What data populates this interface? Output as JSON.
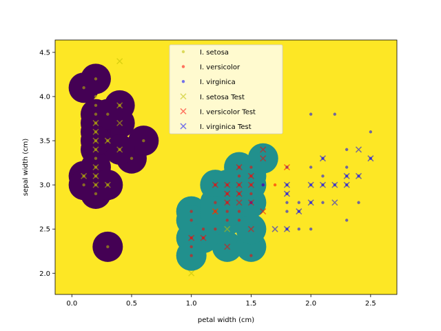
{
  "chart_data": {
    "type": "scatter",
    "title": "",
    "xlabel": "petal width (cm)",
    "ylabel": "sepal width (cm)",
    "xlim": [
      -0.14,
      2.72
    ],
    "ylim": [
      1.76,
      4.64
    ],
    "xticks": [
      0.0,
      0.5,
      1.0,
      1.5,
      2.0,
      2.5
    ],
    "xtick_labels": [
      "0.0",
      "0.5",
      "1.0",
      "1.5",
      "2.0",
      "2.5"
    ],
    "yticks": [
      2.0,
      2.5,
      3.0,
      3.5,
      4.0,
      4.5
    ],
    "ytick_labels": [
      "2.0",
      "2.5",
      "3.0",
      "3.5",
      "4.0",
      "4.5"
    ],
    "grid": false,
    "legend_position": "top-center",
    "background": {
      "type": "decision-regions",
      "colors": {
        "setosa": "#440154",
        "versicolor": "#21908d",
        "virginica": "#fde725"
      },
      "setosa_region": [
        [
          [
            0.2,
            3.8
          ],
          [
            0.2,
            4.2
          ],
          [
            0.1,
            4.1
          ],
          [
            0.2,
            3.7
          ],
          [
            0.4,
            3.9
          ],
          [
            0.4,
            3.7
          ],
          [
            0.3,
            3.5
          ],
          [
            0.2,
            3.4
          ],
          [
            0.1,
            3.1
          ],
          [
            0.2,
            3.2
          ],
          [
            0.2,
            3.0
          ],
          [
            0.2,
            2.9
          ],
          [
            0.5,
            3.3
          ],
          [
            0.6,
            3.5
          ],
          [
            0.2,
            3.6
          ],
          [
            0.3,
            3.8
          ],
          [
            0.1,
            3.0
          ],
          [
            0.3,
            3.0
          ],
          [
            0.4,
            3.4
          ],
          [
            0.2,
            3.5
          ]
        ],
        [
          [
            0.3,
            2.3
          ]
        ]
      ],
      "versicolor_region": [
        [
          [
            1.0,
            2.4
          ],
          [
            1.0,
            2.7
          ],
          [
            1.1,
            2.5
          ],
          [
            1.0,
            2.2
          ],
          [
            1.3,
            2.3
          ],
          [
            1.0,
            2.6
          ],
          [
            1.1,
            2.4
          ],
          [
            1.3,
            2.6
          ],
          [
            1.2,
            2.5
          ],
          [
            1.5,
            2.3
          ],
          [
            1.2,
            2.8
          ],
          [
            1.3,
            2.9
          ],
          [
            1.4,
            2.9
          ],
          [
            1.5,
            2.8
          ],
          [
            1.2,
            3.0
          ],
          [
            1.5,
            3.0
          ],
          [
            1.3,
            2.8
          ],
          [
            1.4,
            3.1
          ],
          [
            1.5,
            3.1
          ],
          [
            1.4,
            3.2
          ],
          [
            1.6,
            3.3
          ],
          [
            1.3,
            3.0
          ],
          [
            1.4,
            2.7
          ],
          [
            1.2,
            2.6
          ],
          [
            1.5,
            2.5
          ],
          [
            1.4,
            2.8
          ],
          [
            1.3,
            2.7
          ],
          [
            1.2,
            2.7
          ],
          [
            1.1,
            2.4
          ]
        ]
      ]
    },
    "series": [
      {
        "name": "I. setosa",
        "marker": "dot",
        "color": "#bfbf00",
        "points": [
          [
            0.2,
            4.2
          ],
          [
            0.1,
            4.1
          ],
          [
            0.2,
            3.8
          ],
          [
            0.3,
            3.8
          ],
          [
            0.2,
            3.7
          ],
          [
            0.4,
            3.9
          ],
          [
            0.2,
            3.6
          ],
          [
            0.6,
            3.5
          ],
          [
            0.5,
            3.3
          ],
          [
            0.3,
            3.5
          ],
          [
            0.2,
            3.5
          ],
          [
            0.2,
            3.4
          ],
          [
            0.4,
            3.4
          ],
          [
            0.2,
            3.3
          ],
          [
            0.2,
            3.2
          ],
          [
            0.2,
            3.1
          ],
          [
            0.1,
            3.1
          ],
          [
            0.2,
            3.0
          ],
          [
            0.1,
            3.0
          ],
          [
            0.3,
            3.0
          ],
          [
            0.2,
            2.9
          ],
          [
            0.3,
            2.3
          ],
          [
            0.2,
            3.9
          ],
          [
            0.2,
            4.0
          ]
        ]
      },
      {
        "name": "I. versicolor",
        "marker": "dot",
        "color": "#ff0000",
        "points": [
          [
            1.0,
            2.7
          ],
          [
            1.0,
            2.6
          ],
          [
            1.1,
            2.5
          ],
          [
            1.0,
            2.4
          ],
          [
            1.0,
            2.3
          ],
          [
            1.0,
            2.2
          ],
          [
            1.2,
            2.8
          ],
          [
            1.2,
            3.0
          ],
          [
            1.3,
            3.0
          ],
          [
            1.4,
            3.0
          ],
          [
            1.5,
            3.0
          ],
          [
            1.3,
            2.9
          ],
          [
            1.4,
            2.9
          ],
          [
            1.5,
            2.9
          ],
          [
            1.3,
            2.8
          ],
          [
            1.5,
            2.8
          ],
          [
            1.3,
            2.7
          ],
          [
            1.4,
            2.7
          ],
          [
            1.2,
            2.7
          ],
          [
            1.3,
            2.6
          ],
          [
            1.4,
            2.6
          ],
          [
            1.2,
            2.5
          ],
          [
            1.4,
            3.2
          ],
          [
            1.5,
            3.2
          ],
          [
            1.5,
            3.1
          ],
          [
            1.4,
            3.1
          ],
          [
            1.6,
            3.0
          ],
          [
            1.7,
            3.0
          ],
          [
            1.5,
            2.2
          ],
          [
            1.1,
            2.4
          ]
        ]
      },
      {
        "name": "I. virginica",
        "marker": "dot",
        "color": "#0000ff",
        "points": [
          [
            2.0,
            3.8
          ],
          [
            2.2,
            3.8
          ],
          [
            2.5,
            3.6
          ],
          [
            2.3,
            3.4
          ],
          [
            2.5,
            3.3
          ],
          [
            2.1,
            3.3
          ],
          [
            2.3,
            3.2
          ],
          [
            2.0,
            3.2
          ],
          [
            1.8,
            3.2
          ],
          [
            2.3,
            3.1
          ],
          [
            2.4,
            3.1
          ],
          [
            2.1,
            3.1
          ],
          [
            2.0,
            3.0
          ],
          [
            2.1,
            3.0
          ],
          [
            2.2,
            3.0
          ],
          [
            2.3,
            3.0
          ],
          [
            1.8,
            3.0
          ],
          [
            1.6,
            3.0
          ],
          [
            2.0,
            2.8
          ],
          [
            1.8,
            2.8
          ],
          [
            2.4,
            2.8
          ],
          [
            1.8,
            2.9
          ],
          [
            1.9,
            2.8
          ],
          [
            1.9,
            2.7
          ],
          [
            1.8,
            2.7
          ],
          [
            2.3,
            2.6
          ],
          [
            1.9,
            2.5
          ],
          [
            1.8,
            2.5
          ],
          [
            2.0,
            2.5
          ],
          [
            1.5,
            2.8
          ],
          [
            2.1,
            2.8
          ]
        ]
      },
      {
        "name": "I. setosa Test",
        "marker": "x",
        "color": "#bfbf00",
        "points": [
          [
            0.4,
            4.4
          ],
          [
            0.4,
            3.9
          ],
          [
            0.4,
            3.7
          ],
          [
            0.2,
            3.7
          ],
          [
            0.2,
            3.6
          ],
          [
            0.2,
            3.5
          ],
          [
            0.3,
            3.5
          ],
          [
            0.2,
            3.4
          ],
          [
            0.4,
            3.4
          ],
          [
            0.2,
            3.2
          ],
          [
            0.2,
            3.1
          ],
          [
            0.1,
            3.1
          ],
          [
            0.2,
            3.0
          ],
          [
            0.3,
            3.0
          ],
          [
            1.0,
            2.0
          ],
          [
            1.3,
            2.5
          ],
          [
            1.2,
            2.7
          ]
        ]
      },
      {
        "name": "I. versicolor Test",
        "marker": "x",
        "color": "#ff0000",
        "points": [
          [
            1.6,
            3.4
          ],
          [
            1.6,
            3.3
          ],
          [
            1.4,
            3.2
          ],
          [
            1.8,
            3.2
          ],
          [
            1.5,
            3.1
          ],
          [
            1.2,
            3.0
          ],
          [
            1.3,
            3.0
          ],
          [
            1.4,
            3.0
          ],
          [
            1.5,
            3.0
          ],
          [
            1.3,
            2.9
          ],
          [
            1.3,
            2.8
          ],
          [
            1.4,
            2.8
          ],
          [
            1.2,
            2.7
          ],
          [
            1.6,
            2.7
          ],
          [
            1.5,
            2.5
          ],
          [
            1.0,
            2.4
          ],
          [
            1.1,
            2.4
          ],
          [
            1.3,
            2.3
          ],
          [
            1.4,
            2.9
          ],
          [
            1.5,
            2.8
          ]
        ]
      },
      {
        "name": "I. virginica Test",
        "marker": "x",
        "color": "#0000ff",
        "points": [
          [
            2.4,
            3.4
          ],
          [
            2.5,
            3.3
          ],
          [
            2.1,
            3.3
          ],
          [
            2.3,
            3.1
          ],
          [
            2.4,
            3.1
          ],
          [
            2.0,
            3.0
          ],
          [
            2.1,
            3.0
          ],
          [
            2.2,
            3.0
          ],
          [
            2.3,
            3.0
          ],
          [
            1.8,
            3.0
          ],
          [
            1.8,
            2.9
          ],
          [
            1.9,
            2.7
          ],
          [
            2.0,
            2.8
          ],
          [
            2.2,
            2.8
          ],
          [
            1.7,
            2.5
          ],
          [
            1.8,
            2.5
          ]
        ]
      }
    ]
  }
}
